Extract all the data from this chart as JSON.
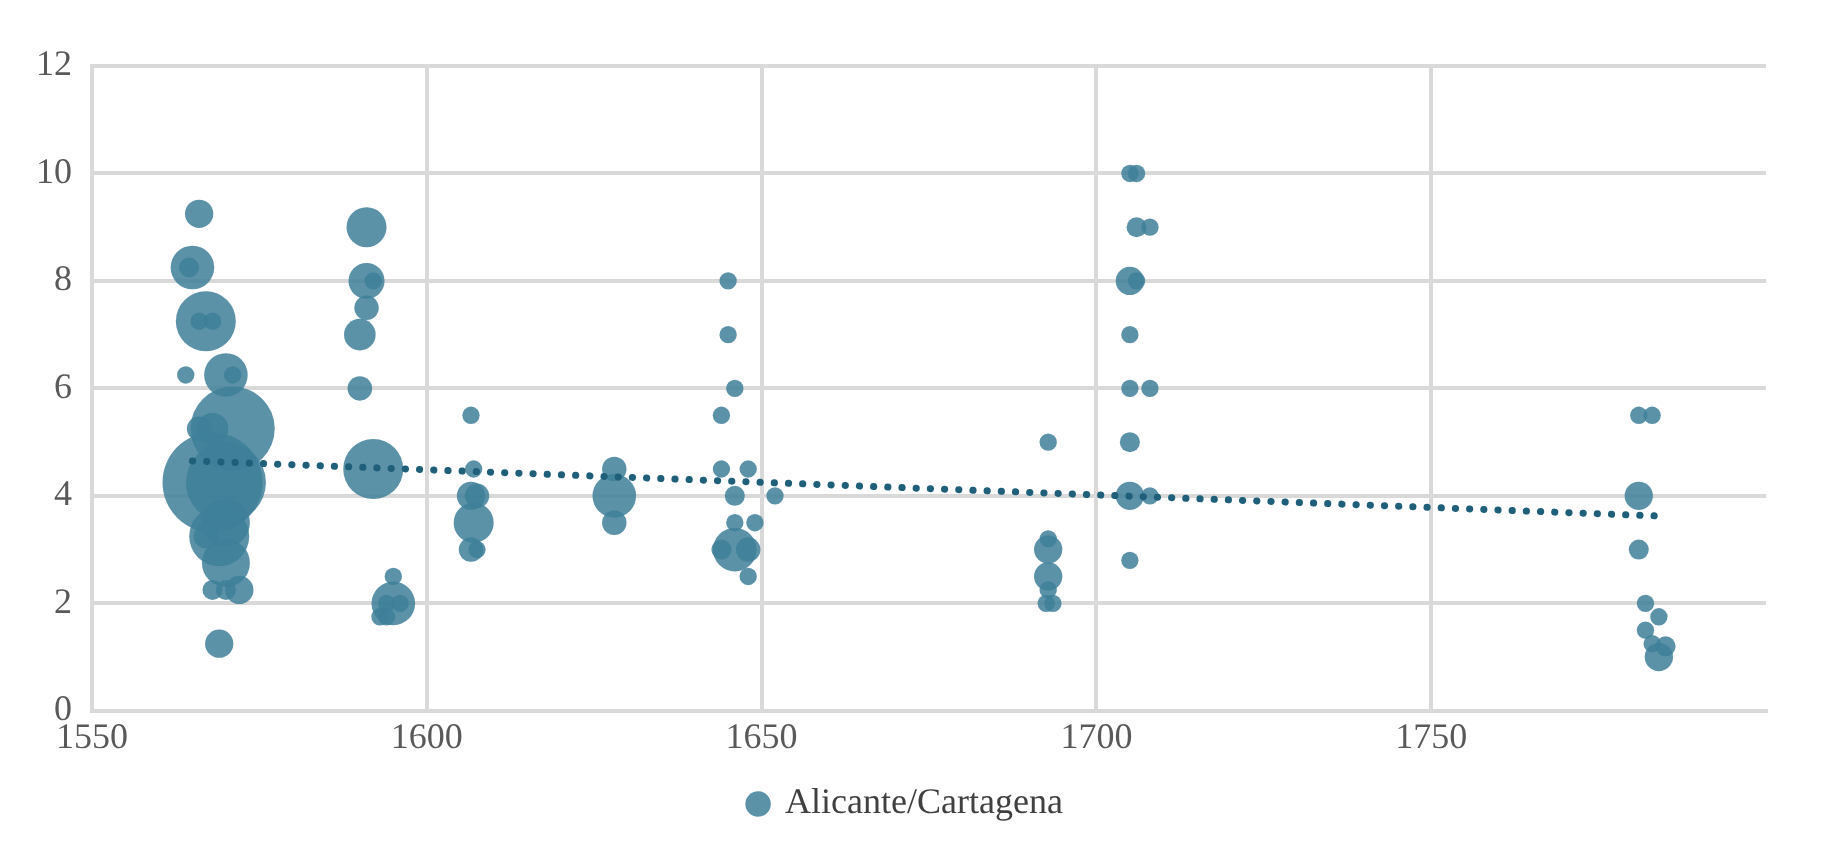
{
  "chart_data": {
    "type": "bubble",
    "xlim": [
      1550,
      1800
    ],
    "xticks": [
      1550,
      1600,
      1650,
      1700,
      1750
    ],
    "ylim": [
      0,
      12
    ],
    "yticks": [
      0,
      2,
      4,
      6,
      8,
      10,
      12
    ],
    "grid": true,
    "legend": "bottom",
    "series": [
      {
        "name": "Alicante/Cartagena",
        "color": "#3e7f99",
        "x": [
          1566,
          1565,
          1564.5,
          1567,
          1566,
          1568,
          1570,
          1564,
          1571,
          1571,
          1568,
          1570,
          1568,
          1566,
          1569,
          1570,
          1570,
          1567,
          1568,
          1570,
          1572,
          1569,
          1591,
          1591,
          1592,
          1591,
          1590,
          1590,
          1592,
          1595,
          1594,
          1596,
          1595,
          1593,
          1594,
          1606.6,
          1607,
          1606.6,
          1607.5,
          1607,
          1606.6,
          1607.5,
          1628,
          1628,
          1628,
          1645,
          1645,
          1646,
          1644,
          1644,
          1648,
          1646,
          1652,
          1646,
          1649,
          1646,
          1644,
          1648,
          1648,
          1692.8,
          1692.8,
          1692.8,
          1692.8,
          1692.8,
          1692.5,
          1693.5,
          1705,
          1706,
          1706,
          1708,
          1705,
          1706,
          1705,
          1705,
          1708,
          1705,
          1705,
          1708,
          1705,
          1781,
          1783,
          1781,
          1781,
          1782,
          1784,
          1782,
          1783,
          1785,
          1784
        ],
        "values": [
          9.25,
          8.25,
          8.25,
          7.25,
          7.25,
          7.25,
          6.25,
          6.25,
          6.25,
          5.25,
          4.25,
          4.25,
          5.25,
          5.25,
          3.25,
          3.5,
          2.75,
          3.25,
          2.25,
          2.25,
          2.25,
          1.25,
          9,
          8,
          8,
          7.5,
          7,
          6,
          4.5,
          2,
          2,
          2,
          2.5,
          1.75,
          1.75,
          5.5,
          4.5,
          4,
          4,
          3.5,
          3,
          3,
          4.5,
          4,
          3.5,
          8,
          7,
          6,
          5.5,
          4.5,
          4.5,
          4,
          4,
          3.5,
          3.5,
          3,
          3,
          3,
          2.5,
          5,
          3.2,
          3,
          2.5,
          2.25,
          2,
          2,
          10,
          10,
          9,
          9,
          8,
          8,
          7,
          6,
          6,
          5,
          4,
          4,
          2.8,
          5.5,
          5.5,
          4,
          3,
          2,
          1.75,
          1.5,
          1.25,
          1.2,
          1
        ],
        "sizes": [
          0.08,
          0.19,
          0.04,
          0.36,
          0.03,
          0.03,
          0.19,
          0.03,
          0.03,
          0.71,
          1,
          0.64,
          0.1,
          0.06,
          0.36,
          0.23,
          0.23,
          0.06,
          0.04,
          0.04,
          0.08,
          0.08,
          0.16,
          0.13,
          0.03,
          0.06,
          0.1,
          0.06,
          0.36,
          0.19,
          0.03,
          0.03,
          0.03,
          0.03,
          0.03,
          0.03,
          0.03,
          0.08,
          0.06,
          0.16,
          0.06,
          0.03,
          0.06,
          0.19,
          0.06,
          0.03,
          0.03,
          0.03,
          0.03,
          0.03,
          0.03,
          0.04,
          0.03,
          0.03,
          0.03,
          0.19,
          0.04,
          0.06,
          0.03,
          0.03,
          0.03,
          0.08,
          0.08,
          0.03,
          0.03,
          0.03,
          0.03,
          0.03,
          0.04,
          0.03,
          0.08,
          0.03,
          0.03,
          0.03,
          0.03,
          0.04,
          0.08,
          0.03,
          0.03,
          0.03,
          0.03,
          0.08,
          0.04,
          0.03,
          0.03,
          0.03,
          0.03,
          0.04,
          0.08
        ]
      },
      {
        "type": "line",
        "color": "#1f5f7a",
        "line_style": "dotted",
        "marker": "none",
        "x": [
          1565,
          1785
        ],
        "values": [
          4.65,
          3.62
        ]
      }
    ]
  }
}
